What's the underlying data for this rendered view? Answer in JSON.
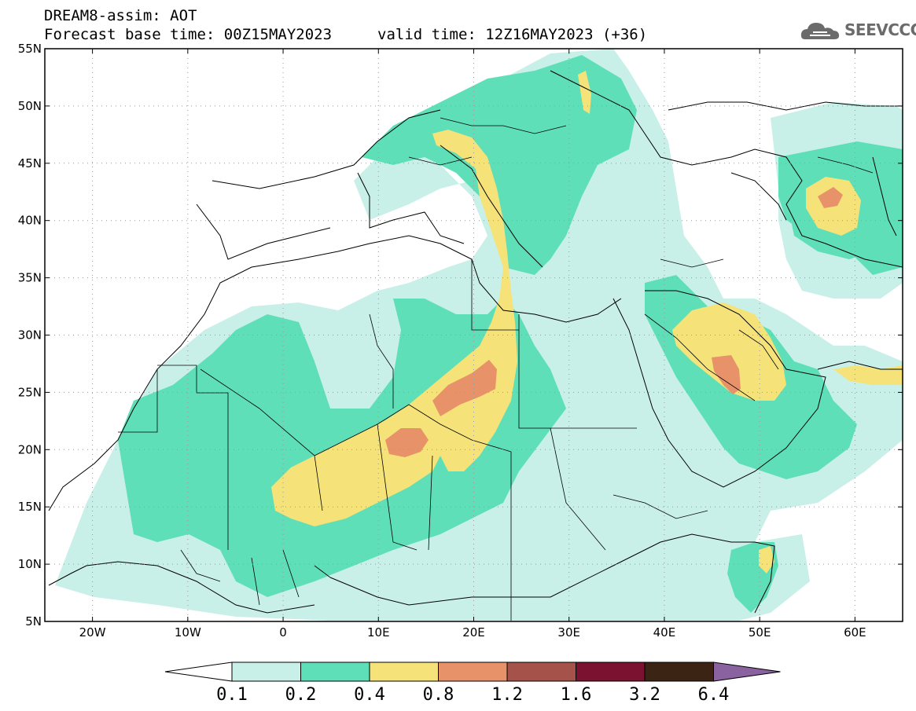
{
  "header": {
    "title": "DREAM8-assim: AOT",
    "base_time": "Forecast base time: 00Z15MAY2023",
    "valid_time": "valid time: 12Z16MAY2023 (+36)"
  },
  "logo": {
    "text": "SEEVCCC",
    "icon": "cloud-icon"
  },
  "map": {
    "lon_range": [
      -25,
      65
    ],
    "lat_range": [
      5,
      55
    ],
    "lon_ticks": [
      {
        "v": -20,
        "label": "20W"
      },
      {
        "v": -10,
        "label": "10W"
      },
      {
        "v": 0,
        "label": "0"
      },
      {
        "v": 10,
        "label": "10E"
      },
      {
        "v": 20,
        "label": "20E"
      },
      {
        "v": 30,
        "label": "30E"
      },
      {
        "v": 40,
        "label": "40E"
      },
      {
        "v": 50,
        "label": "50E"
      },
      {
        "v": 60,
        "label": "60E"
      }
    ],
    "lat_ticks": [
      {
        "v": 55,
        "label": "55N"
      },
      {
        "v": 50,
        "label": "50N"
      },
      {
        "v": 45,
        "label": "45N"
      },
      {
        "v": 40,
        "label": "40N"
      },
      {
        "v": 35,
        "label": "35N"
      },
      {
        "v": 30,
        "label": "30N"
      },
      {
        "v": 25,
        "label": "25N"
      },
      {
        "v": 20,
        "label": "20N"
      },
      {
        "v": 15,
        "label": "15N"
      },
      {
        "v": 10,
        "label": "10N"
      },
      {
        "v": 5,
        "label": "5N"
      }
    ],
    "grid": true
  },
  "colorbar": {
    "labels": [
      "0.1",
      "0.2",
      "0.4",
      "0.8",
      "1.2",
      "1.6",
      "3.2",
      "6.4"
    ],
    "colors": [
      "#ffffff",
      "#c8f0e8",
      "#5fdfb8",
      "#f5e37a",
      "#e8926a",
      "#a5524a",
      "#7a1230",
      "#3b2414",
      "#8a62a0"
    ]
  }
}
